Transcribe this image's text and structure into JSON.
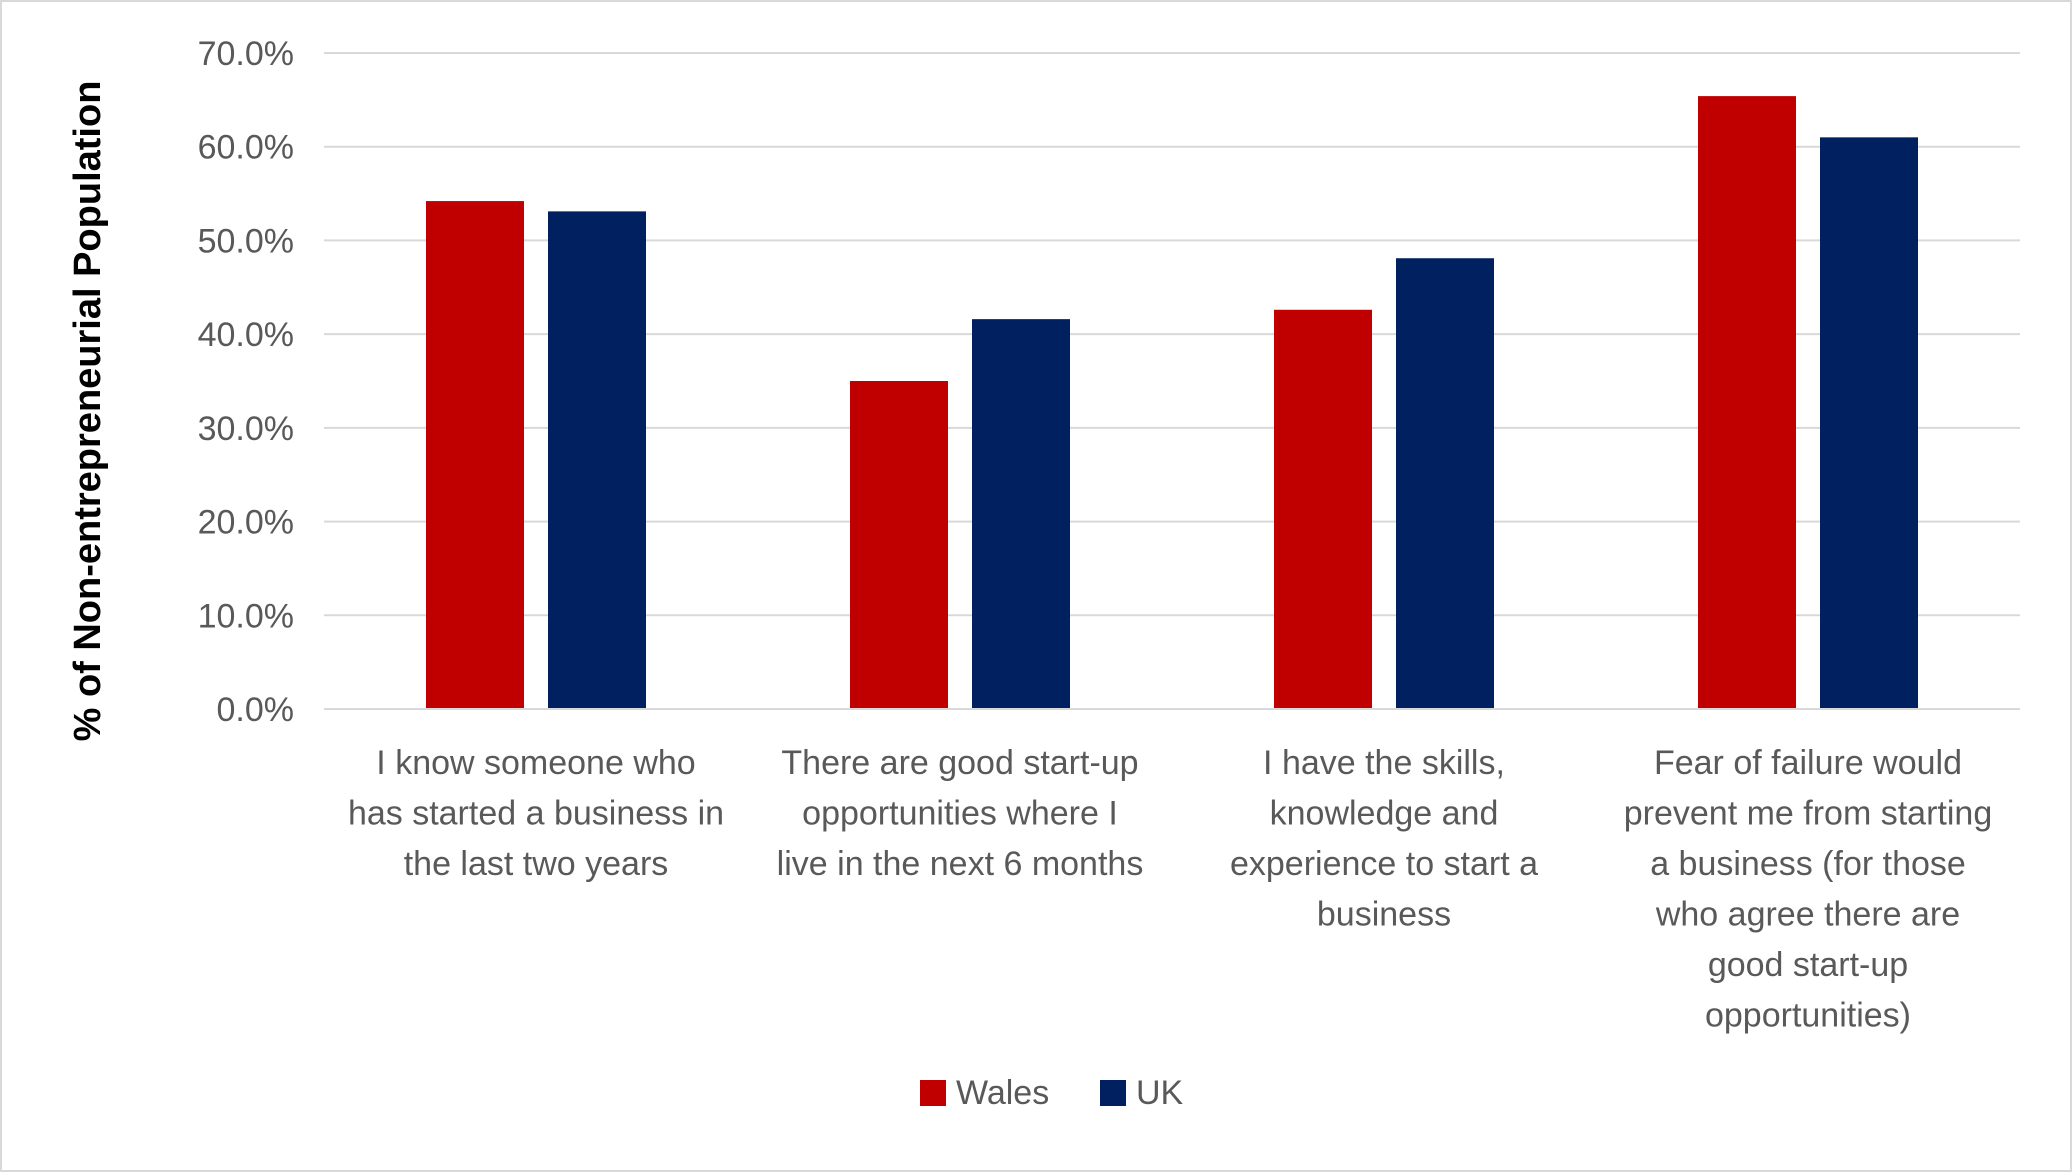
{
  "chart_data": {
    "type": "bar",
    "title": "",
    "xlabel": "",
    "ylabel": "% of Non-entrepreneurial Population",
    "ylim": [
      0,
      0.7
    ],
    "yticks": [
      0,
      0.1,
      0.2,
      0.3,
      0.4,
      0.5,
      0.6,
      0.7
    ],
    "ytick_labels": [
      "0.0%",
      "10.0%",
      "20.0%",
      "30.0%",
      "40.0%",
      "50.0%",
      "60.0%",
      "70.0%"
    ],
    "grid": true,
    "legend_position": "bottom",
    "categories": [
      "I know someone who has started a business in the last two years",
      "There are good start-up opportunities where I live in the next 6 months",
      "I have the skills, knowledge and experience to start a business",
      "Fear of failure would prevent me from starting a business (for those who agree there are good start-up opportunities)"
    ],
    "category_lines": [
      [
        "I know someone who",
        "has started a business in",
        "the last two years"
      ],
      [
        "There are good start-up",
        "opportunities where I",
        "live in the next 6 months"
      ],
      [
        "I have the skills,",
        "knowledge and",
        "experience to start a",
        "business"
      ],
      [
        "Fear of failure would",
        "prevent me from starting",
        "a business (for those",
        "who agree there are",
        "good start-up",
        "opportunities)"
      ]
    ],
    "series": [
      {
        "name": "Wales",
        "color": "#c00000",
        "values": [
          0.542,
          0.35,
          0.426,
          0.654
        ]
      },
      {
        "name": "UK",
        "color": "#002060",
        "values": [
          0.531,
          0.416,
          0.481,
          0.61
        ]
      }
    ],
    "gridline_color": "#d9d9d9",
    "axis_color": "#d9d9d9"
  }
}
